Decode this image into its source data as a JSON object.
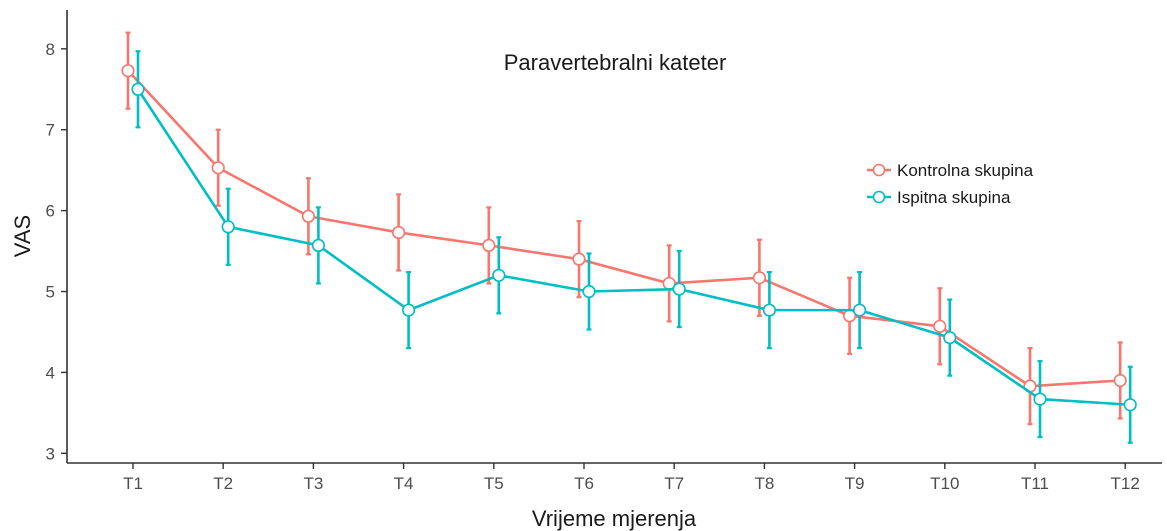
{
  "chart_data": {
    "type": "line",
    "title": "",
    "annotation": "Paravertebralni kateter",
    "xlabel": "Vrijeme mjerenja",
    "ylabel": "VAS",
    "categories": [
      "T1",
      "T2",
      "T3",
      "T4",
      "T5",
      "T6",
      "T7",
      "T8",
      "T9",
      "T10",
      "T11",
      "T12"
    ],
    "yticks": [
      3,
      4,
      5,
      6,
      7,
      8
    ],
    "ylim": [
      2.88,
      8.48
    ],
    "grid": false,
    "legend_position": "right",
    "series": [
      {
        "name": "Kontrolna skupina",
        "color": "#F8766D",
        "values": [
          7.73,
          6.53,
          5.93,
          5.73,
          5.57,
          5.4,
          5.1,
          5.17,
          4.7,
          4.57,
          3.83,
          3.9
        ],
        "lower": [
          7.26,
          6.06,
          5.46,
          5.26,
          5.1,
          4.93,
          4.63,
          4.7,
          4.23,
          4.1,
          3.36,
          3.43
        ],
        "upper": [
          8.2,
          7.0,
          6.4,
          6.2,
          6.04,
          5.87,
          5.57,
          5.64,
          5.17,
          5.04,
          4.3,
          4.37
        ]
      },
      {
        "name": "Ispitna skupina",
        "color": "#00BFC4",
        "values": [
          7.5,
          5.8,
          5.57,
          4.77,
          5.2,
          5.0,
          5.03,
          4.77,
          4.77,
          4.43,
          3.67,
          3.6
        ],
        "lower": [
          7.03,
          5.33,
          5.1,
          4.3,
          4.73,
          4.53,
          4.56,
          4.3,
          4.3,
          3.96,
          3.2,
          3.13
        ],
        "upper": [
          7.97,
          6.27,
          6.04,
          5.24,
          5.67,
          5.47,
          5.5,
          5.24,
          5.24,
          4.9,
          4.14,
          4.07
        ]
      }
    ]
  }
}
